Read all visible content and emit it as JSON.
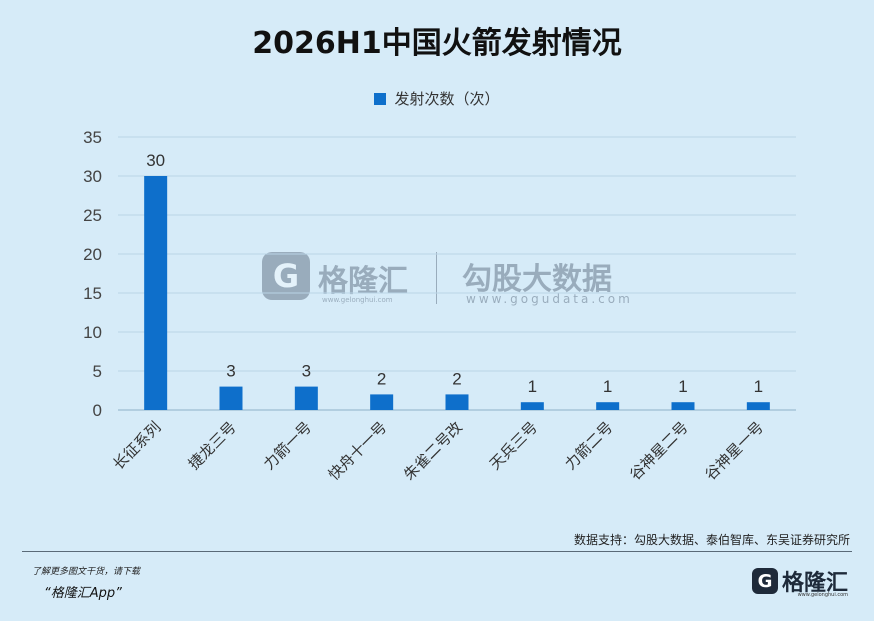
{
  "chart_data": {
    "type": "bar",
    "title": "2026H1中国火箭发射情况",
    "series": [
      {
        "name": "发射次数（次）",
        "values": [
          30,
          3,
          3,
          2,
          2,
          1,
          1,
          1,
          1
        ]
      }
    ],
    "categories": [
      "长征系列",
      "捷龙三号",
      "力箭一号",
      "快舟十一号",
      "朱雀二号改",
      "天兵三号",
      "力箭二号",
      "谷神星二号",
      "谷神星一号"
    ],
    "ylim": [
      0,
      35
    ],
    "yticks": [
      0,
      5,
      10,
      15,
      20,
      25,
      30,
      35
    ],
    "grid": true,
    "legend": "top-center",
    "bar_color": "#0e6fcb",
    "grid_color": "#b9d4e6"
  },
  "source": "数据支持：勾股大数据、泰伯智库、东吴证券研究所",
  "footer": {
    "note": "了解更多图文干货，请下载",
    "app": "“格隆汇App”"
  },
  "brand": {
    "mark": "G",
    "name": "格隆汇",
    "url": "www.gelonghui.com"
  },
  "watermark": {
    "mark": "G",
    "name1": "格隆汇",
    "url1": "www.gelonghui.com",
    "name2": "勾股大数据",
    "url2": "www.gogudata.com"
  }
}
